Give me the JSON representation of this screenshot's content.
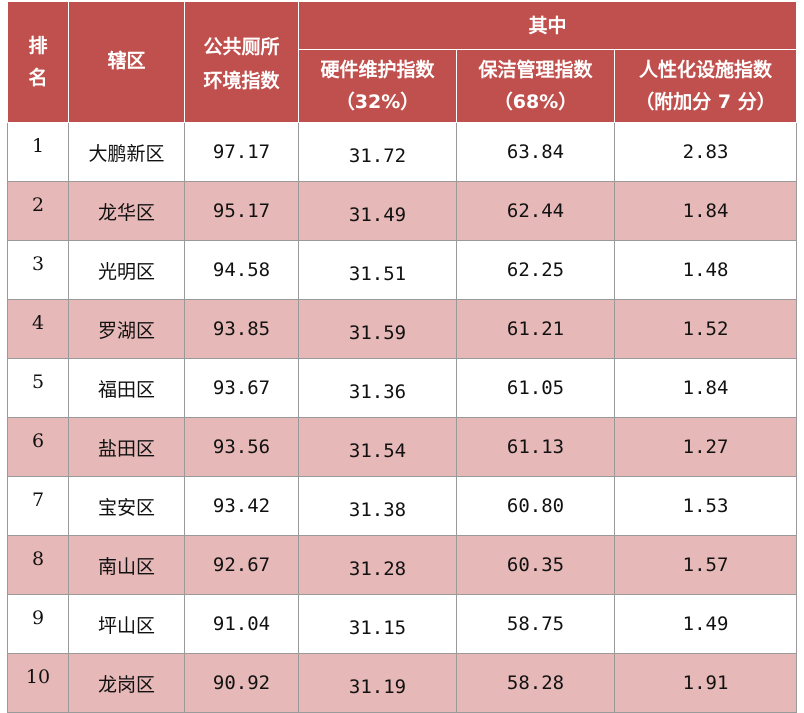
{
  "table": {
    "header": {
      "rank": [
        "排",
        "名"
      ],
      "district": "辖区",
      "overall": [
        "公共厕所",
        "环境指数"
      ],
      "group": "其中",
      "sub": [
        {
          "line1": "硬件维护指数",
          "line2": "（32%）"
        },
        {
          "line1": "保洁管理指数",
          "line2": "（68%）"
        },
        {
          "line1": "人性化设施指数",
          "line2": "（附加分 7 分）"
        }
      ]
    },
    "rows": [
      {
        "rank": "1",
        "district": "大鹏新区",
        "overall": "97.17",
        "hardware": "31.72",
        "cleaning": "63.84",
        "humanized": "2.83"
      },
      {
        "rank": "2",
        "district": "龙华区",
        "overall": "95.17",
        "hardware": "31.49",
        "cleaning": "62.44",
        "humanized": "1.84"
      },
      {
        "rank": "3",
        "district": "光明区",
        "overall": "94.58",
        "hardware": "31.51",
        "cleaning": "62.25",
        "humanized": "1.48"
      },
      {
        "rank": "4",
        "district": "罗湖区",
        "overall": "93.85",
        "hardware": "31.59",
        "cleaning": "61.21",
        "humanized": "1.52"
      },
      {
        "rank": "5",
        "district": "福田区",
        "overall": "93.67",
        "hardware": "31.36",
        "cleaning": "61.05",
        "humanized": "1.84"
      },
      {
        "rank": "6",
        "district": "盐田区",
        "overall": "93.56",
        "hardware": "31.54",
        "cleaning": "61.13",
        "humanized": "1.27"
      },
      {
        "rank": "7",
        "district": "宝安区",
        "overall": "93.42",
        "hardware": "31.38",
        "cleaning": "60.80",
        "humanized": "1.53"
      },
      {
        "rank": "8",
        "district": "南山区",
        "overall": "92.67",
        "hardware": "31.28",
        "cleaning": "60.35",
        "humanized": "1.57"
      },
      {
        "rank": "9",
        "district": "坪山区",
        "overall": "91.04",
        "hardware": "31.15",
        "cleaning": "58.75",
        "humanized": "1.49"
      },
      {
        "rank": "10",
        "district": "龙岗区",
        "overall": "90.92",
        "hardware": "31.19",
        "cleaning": "58.28",
        "humanized": "1.91"
      }
    ],
    "colors": {
      "header_bg": "#c0504d",
      "stripe_bg": "#e6b8b7",
      "row_bg": "#ffffff"
    }
  }
}
